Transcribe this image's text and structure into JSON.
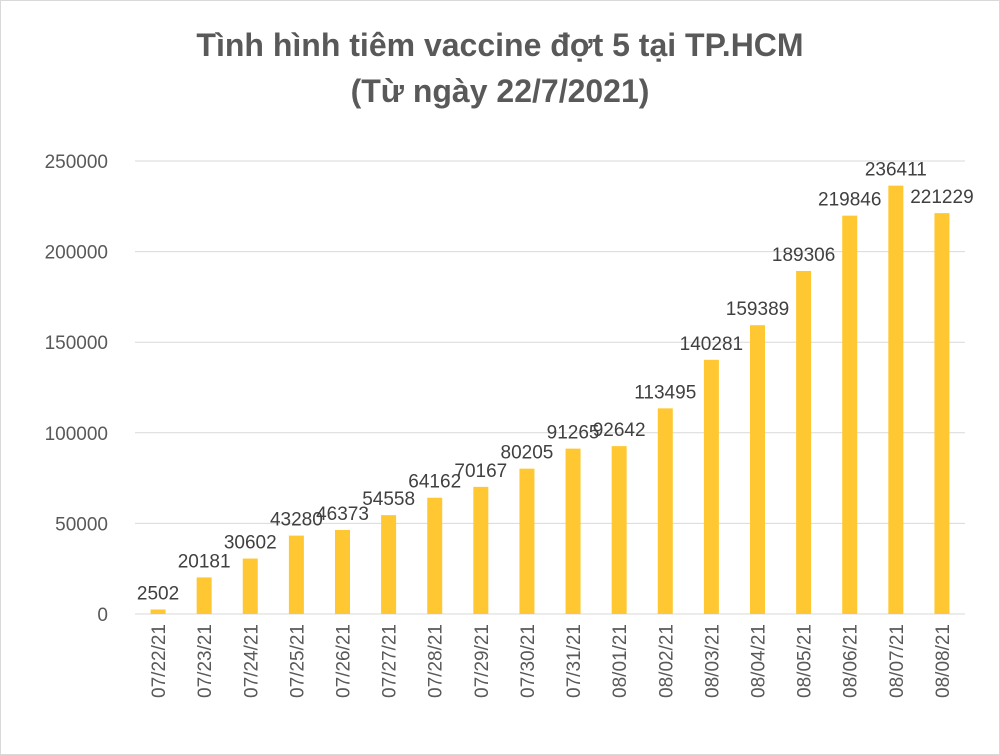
{
  "chart_data": {
    "type": "bar",
    "title": "Tình hình tiêm vaccine đợt 5 tại TP.HCM",
    "subtitle": "(Từ ngày 22/7/2021)",
    "xlabel": "",
    "ylabel": "",
    "categories": [
      "07/22/21",
      "07/23/21",
      "07/24/21",
      "07/25/21",
      "07/26/21",
      "07/27/21",
      "07/28/21",
      "07/29/21",
      "07/30/21",
      "07/31/21",
      "08/01/21",
      "08/02/21",
      "08/03/21",
      "08/04/21",
      "08/05/21",
      "08/06/21",
      "08/07/21",
      "08/08/21"
    ],
    "values": [
      2502,
      20181,
      30602,
      43280,
      46373,
      54558,
      64162,
      70167,
      80205,
      91265,
      92642,
      113495,
      140281,
      159389,
      189306,
      219846,
      236411,
      221229
    ],
    "ylim": [
      0,
      250000
    ],
    "yticks": [
      0,
      50000,
      100000,
      150000,
      200000,
      250000
    ],
    "grid": true,
    "legend": "none",
    "bar_color": "#ffc832",
    "gridline_color": "#d9d9d9"
  }
}
